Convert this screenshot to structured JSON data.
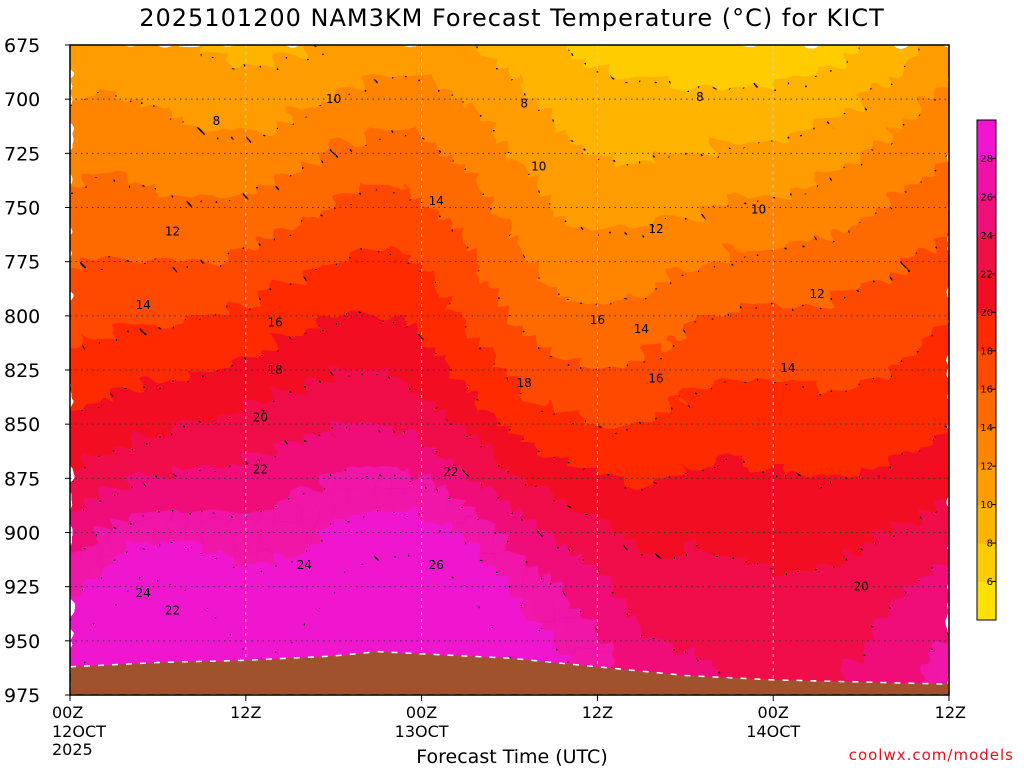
{
  "chart_data": {
    "type": "heatmap",
    "title": "2025101200 NAM3KM Forecast Temperature (°C) for KICT",
    "xlabel": "Forecast Time (UTC)",
    "ylabel": "",
    "credit": "coolwx.com/models",
    "y_axis": {
      "reversed": true,
      "ticks": [
        675,
        700,
        725,
        750,
        775,
        800,
        825,
        850,
        875,
        900,
        925,
        950,
        975
      ],
      "ylim": [
        975,
        675
      ]
    },
    "x_axis": {
      "hours": [
        0,
        12,
        24,
        36,
        48,
        60
      ],
      "ticks": [
        {
          "hour": 0,
          "label": "00Z",
          "date": "12OCT",
          "year": "2025"
        },
        {
          "hour": 12,
          "label": "12Z",
          "date": "",
          "year": ""
        },
        {
          "hour": 24,
          "label": "00Z",
          "date": "13OCT",
          "year": ""
        },
        {
          "hour": 36,
          "label": "12Z",
          "date": "",
          "year": ""
        },
        {
          "hour": 48,
          "label": "00Z",
          "date": "14OCT",
          "year": ""
        },
        {
          "hour": 60,
          "label": "12Z",
          "date": "",
          "year": ""
        }
      ]
    },
    "grid": true,
    "colorbar": {
      "placement": "right",
      "levels": [
        4,
        6,
        8,
        10,
        12,
        14,
        16,
        18,
        20,
        22,
        24,
        26,
        28,
        30
      ],
      "labels": [
        6,
        8,
        10,
        12,
        14,
        16,
        18,
        20,
        22,
        24,
        26,
        28
      ],
      "colors": [
        "#ffe000",
        "#ffcc00",
        "#ffb400",
        "#ff9c00",
        "#ff8400",
        "#ff6a00",
        "#ff4a00",
        "#ff2a00",
        "#f20e22",
        "#f01048",
        "#f0107a",
        "#f012a8",
        "#f016d0"
      ]
    },
    "terrain_color": "#a0522d",
    "surface_pressure": [
      [
        0,
        962
      ],
      [
        6,
        960
      ],
      [
        12,
        959
      ],
      [
        18,
        957
      ],
      [
        21,
        955
      ],
      [
        24,
        956
      ],
      [
        30,
        958
      ],
      [
        36,
        962
      ],
      [
        39,
        964
      ],
      [
        42,
        966
      ],
      [
        48,
        968
      ],
      [
        54,
        969
      ],
      [
        60,
        970
      ]
    ],
    "contour_labels": [
      {
        "value": "8",
        "hour": 10,
        "p": 710
      },
      {
        "value": "10",
        "hour": 18,
        "p": 700
      },
      {
        "value": "8",
        "hour": 31,
        "p": 702
      },
      {
        "value": "8",
        "hour": 43,
        "p": 699
      },
      {
        "value": "10",
        "hour": 32,
        "p": 731
      },
      {
        "value": "10",
        "hour": 47,
        "p": 751
      },
      {
        "value": "12",
        "hour": 7,
        "p": 761
      },
      {
        "value": "14",
        "hour": 25,
        "p": 747
      },
      {
        "value": "12",
        "hour": 40,
        "p": 760
      },
      {
        "value": "12",
        "hour": 51,
        "p": 790
      },
      {
        "value": "14",
        "hour": 5,
        "p": 795
      },
      {
        "value": "16",
        "hour": 14,
        "p": 803
      },
      {
        "value": "16",
        "hour": 36,
        "p": 802
      },
      {
        "value": "14",
        "hour": 39,
        "p": 806
      },
      {
        "value": "14",
        "hour": 49,
        "p": 824
      },
      {
        "value": "18",
        "hour": 14,
        "p": 825
      },
      {
        "value": "18",
        "hour": 31,
        "p": 831
      },
      {
        "value": "16",
        "hour": 40,
        "p": 829
      },
      {
        "value": "20",
        "hour": 13,
        "p": 847
      },
      {
        "value": "22",
        "hour": 13,
        "p": 871
      },
      {
        "value": "22",
        "hour": 26,
        "p": 872
      },
      {
        "value": "24",
        "hour": 16,
        "p": 915
      },
      {
        "value": "26",
        "hour": 25,
        "p": 915
      },
      {
        "value": "24",
        "hour": 5,
        "p": 928
      },
      {
        "value": "22",
        "hour": 7,
        "p": 936
      },
      {
        "value": "20",
        "hour": 54,
        "p": 925
      }
    ]
  }
}
